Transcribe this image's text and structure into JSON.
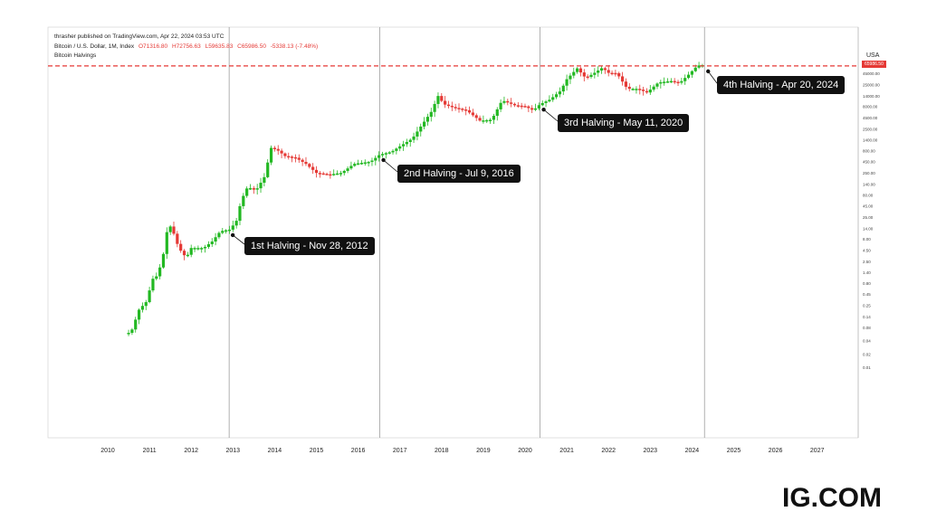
{
  "header": {
    "publisher": "thrasher published on TradingView.com, Apr 22, 2024 03:53 UTC",
    "symbol": "Bitcoin / U.S. Dollar, 1M, Index",
    "open": "O71316.80",
    "high": "H72756.63",
    "low": "L59635.83",
    "close": "C65986.50",
    "change": "-5338.13  (-7.48%)",
    "indicator": "Bitcoin Halvings"
  },
  "currency": "USA",
  "current_price_label": "65986.50",
  "brand": "IG.COM",
  "colors": {
    "up": "#22b822",
    "down": "#e53935",
    "price_line": "#e53935",
    "callout_bg": "#111111"
  },
  "chart_data": {
    "type": "candlestick",
    "x_ticks": [
      "2010",
      "2011",
      "2012",
      "2013",
      "2014",
      "2015",
      "2016",
      "2017",
      "2018",
      "2019",
      "2020",
      "2021",
      "2022",
      "2023",
      "2024",
      "2025",
      "2026",
      "2027"
    ],
    "y_scale": "log",
    "y_ticks": [
      "45000.00",
      "25000.00",
      "14000.00",
      "8000.00",
      "4500.00",
      "2500.00",
      "1400.00",
      "800.00",
      "450.00",
      "250.00",
      "140.00",
      "80.00",
      "45.00",
      "25.00",
      "14.00",
      "8.00",
      "4.50",
      "2.50",
      "1.40",
      "0.80",
      "0.45",
      "0.25",
      "0.14",
      "0.08",
      "0.04",
      "0.02",
      "0.01"
    ],
    "current_price": 65986.5,
    "price_series": [
      {
        "t": 2010.5,
        "v": 0.06
      },
      {
        "t": 2010.58,
        "v": 0.07
      },
      {
        "t": 2010.75,
        "v": 0.2
      },
      {
        "t": 2010.92,
        "v": 0.3
      },
      {
        "t": 2011.08,
        "v": 1
      },
      {
        "t": 2011.2,
        "v": 1.2
      },
      {
        "t": 2011.33,
        "v": 3.5
      },
      {
        "t": 2011.45,
        "v": 18
      },
      {
        "t": 2011.55,
        "v": 13
      },
      {
        "t": 2011.7,
        "v": 5
      },
      {
        "t": 2011.88,
        "v": 3
      },
      {
        "t": 2012.0,
        "v": 5
      },
      {
        "t": 2012.3,
        "v": 5
      },
      {
        "t": 2012.5,
        "v": 7
      },
      {
        "t": 2012.7,
        "v": 12
      },
      {
        "t": 2012.92,
        "v": 13
      },
      {
        "t": 2013.08,
        "v": 20
      },
      {
        "t": 2013.2,
        "v": 60
      },
      {
        "t": 2013.35,
        "v": 120
      },
      {
        "t": 2013.55,
        "v": 100
      },
      {
        "t": 2013.75,
        "v": 200
      },
      {
        "t": 2013.92,
        "v": 950
      },
      {
        "t": 2014.08,
        "v": 800
      },
      {
        "t": 2014.25,
        "v": 600
      },
      {
        "t": 2014.5,
        "v": 550
      },
      {
        "t": 2014.75,
        "v": 400
      },
      {
        "t": 2015.0,
        "v": 250
      },
      {
        "t": 2015.3,
        "v": 230
      },
      {
        "t": 2015.6,
        "v": 250
      },
      {
        "t": 2015.9,
        "v": 400
      },
      {
        "t": 2016.3,
        "v": 450
      },
      {
        "t": 2016.52,
        "v": 650
      },
      {
        "t": 2016.8,
        "v": 750
      },
      {
        "t": 2017.0,
        "v": 1000
      },
      {
        "t": 2017.3,
        "v": 1500
      },
      {
        "t": 2017.5,
        "v": 2800
      },
      {
        "t": 2017.75,
        "v": 6000
      },
      {
        "t": 2017.92,
        "v": 14000
      },
      {
        "t": 2018.05,
        "v": 9000
      },
      {
        "t": 2018.3,
        "v": 7500
      },
      {
        "t": 2018.6,
        "v": 6500
      },
      {
        "t": 2018.92,
        "v": 3800
      },
      {
        "t": 2019.2,
        "v": 4000
      },
      {
        "t": 2019.45,
        "v": 11000
      },
      {
        "t": 2019.75,
        "v": 8500
      },
      {
        "t": 2020.0,
        "v": 8000
      },
      {
        "t": 2020.2,
        "v": 6500
      },
      {
        "t": 2020.36,
        "v": 9000
      },
      {
        "t": 2020.6,
        "v": 11500
      },
      {
        "t": 2020.85,
        "v": 18000
      },
      {
        "t": 2021.0,
        "v": 33000
      },
      {
        "t": 2021.25,
        "v": 58000
      },
      {
        "t": 2021.45,
        "v": 35000
      },
      {
        "t": 2021.65,
        "v": 45000
      },
      {
        "t": 2021.85,
        "v": 60000
      },
      {
        "t": 2022.0,
        "v": 46000
      },
      {
        "t": 2022.2,
        "v": 45000
      },
      {
        "t": 2022.45,
        "v": 20000
      },
      {
        "t": 2022.7,
        "v": 20000
      },
      {
        "t": 2022.92,
        "v": 16500
      },
      {
        "t": 2023.2,
        "v": 28000
      },
      {
        "t": 2023.5,
        "v": 30000
      },
      {
        "t": 2023.7,
        "v": 27000
      },
      {
        "t": 2023.92,
        "v": 42000
      },
      {
        "t": 2024.08,
        "v": 60000
      },
      {
        "t": 2024.2,
        "v": 71000
      },
      {
        "t": 2024.3,
        "v": 66000
      }
    ],
    "halvings": [
      {
        "t": 2012.91,
        "label": "1st Halving - Nov 28, 2012"
      },
      {
        "t": 2016.52,
        "label": "2nd Halving - Jul 9,  2016"
      },
      {
        "t": 2020.36,
        "label": "3rd Halving - May 11, 2020"
      },
      {
        "t": 2024.3,
        "label": "4th Halving - Apr 20, 2024"
      }
    ]
  }
}
